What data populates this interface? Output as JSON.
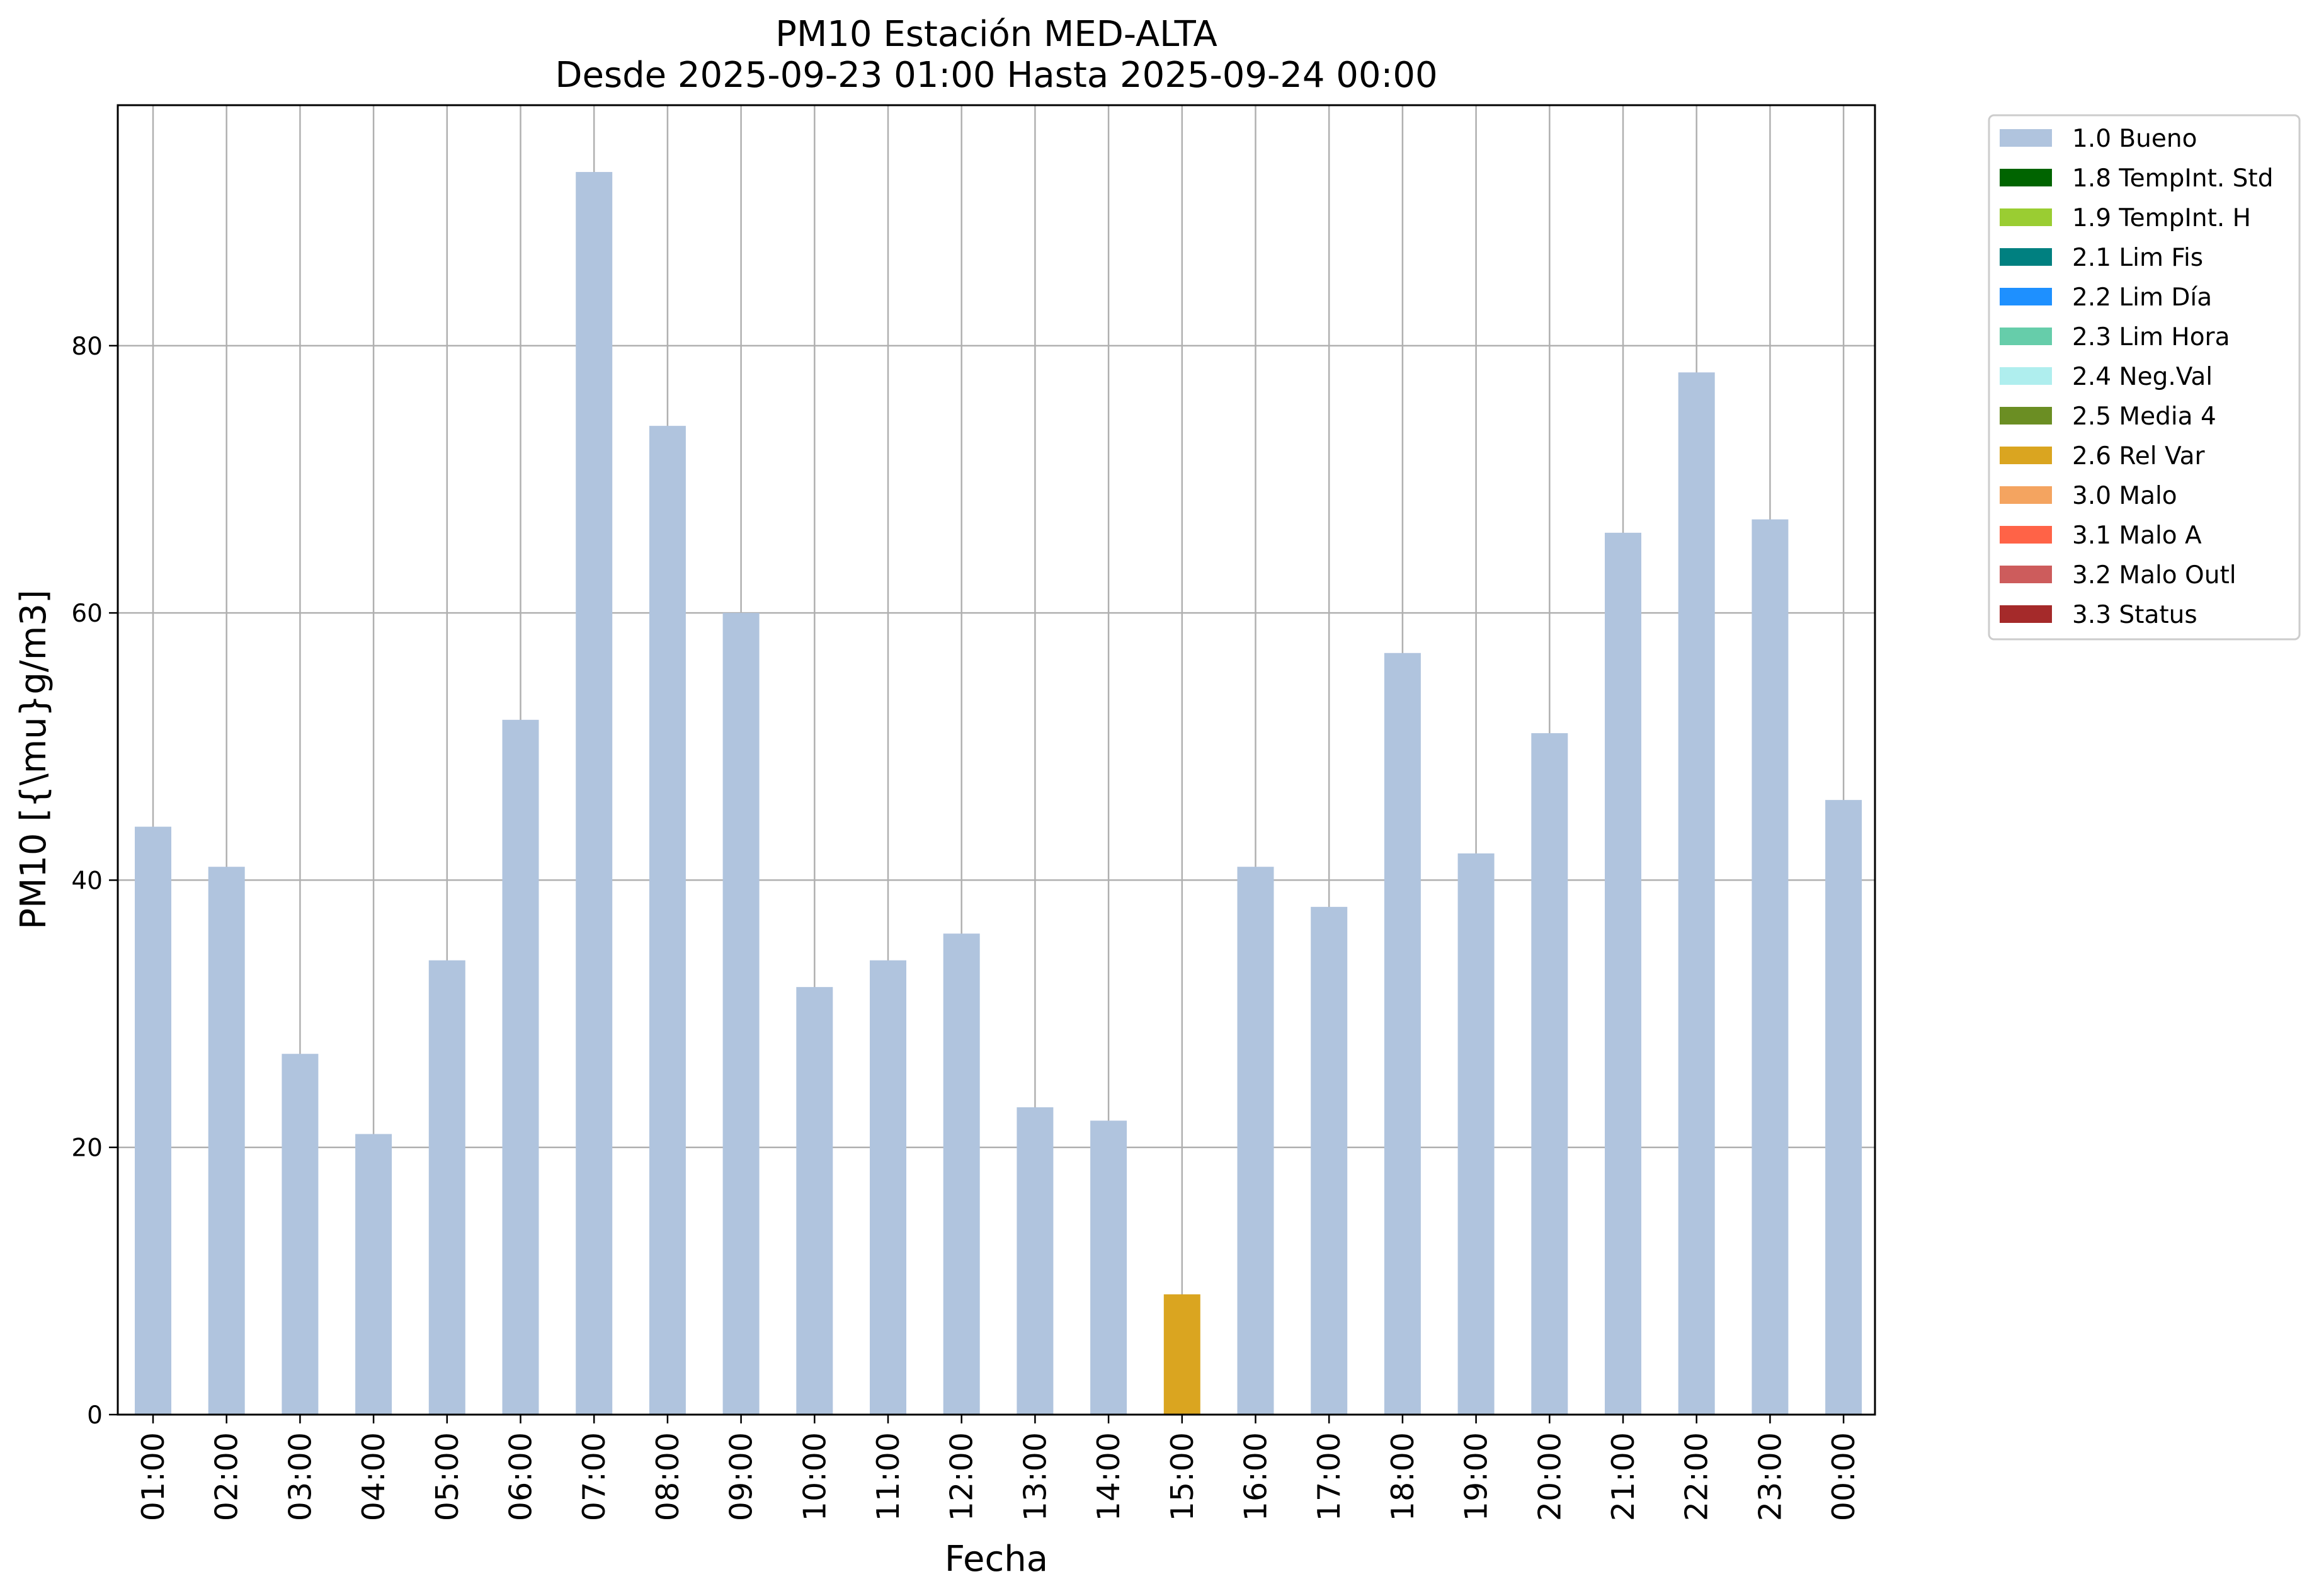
{
  "chart_data": {
    "type": "bar",
    "title": "PM10 Estación MED-ALTA",
    "subtitle": "Desde 2025-09-23 01:00 Hasta 2025-09-24 00:00",
    "xlabel": "Fecha",
    "ylabel": "PM10 [{\\mu}g/m3]",
    "ylim": [
      0,
      98
    ],
    "yticks": [
      0,
      20,
      40,
      60,
      80
    ],
    "grid": true,
    "legend_position": "outside-top-right",
    "categories": [
      "01:00",
      "02:00",
      "03:00",
      "04:00",
      "05:00",
      "06:00",
      "07:00",
      "08:00",
      "09:00",
      "10:00",
      "11:00",
      "12:00",
      "13:00",
      "14:00",
      "15:00",
      "16:00",
      "17:00",
      "18:00",
      "19:00",
      "20:00",
      "21:00",
      "22:00",
      "23:00",
      "00:00"
    ],
    "values": [
      44,
      41,
      27,
      21,
      34,
      52,
      93,
      74,
      60,
      32,
      34,
      36,
      23,
      22,
      9,
      41,
      38,
      57,
      42,
      51,
      66,
      78,
      67,
      46
    ],
    "flags": [
      "1.0 Bueno",
      "1.0 Bueno",
      "1.0 Bueno",
      "1.0 Bueno",
      "1.0 Bueno",
      "1.0 Bueno",
      "1.0 Bueno",
      "1.0 Bueno",
      "1.0 Bueno",
      "1.0 Bueno",
      "1.0 Bueno",
      "1.0 Bueno",
      "1.0 Bueno",
      "1.0 Bueno",
      "2.6 Rel Var",
      "1.0 Bueno",
      "1.0 Bueno",
      "1.0 Bueno",
      "1.0 Bueno",
      "1.0 Bueno",
      "1.0 Bueno",
      "1.0 Bueno",
      "1.0 Bueno",
      "1.0 Bueno"
    ],
    "legend": [
      {
        "label": "1.0 Bueno",
        "color": "#b0c4de"
      },
      {
        "label": "1.8 TempInt. Std",
        "color": "#006400"
      },
      {
        "label": "1.9 TempInt. H",
        "color": "#9acd32"
      },
      {
        "label": "2.1 Lim Fis",
        "color": "#008080"
      },
      {
        "label": "2.2 Lim Día",
        "color": "#1e90ff"
      },
      {
        "label": "2.3 Lim Hora",
        "color": "#66cdaa"
      },
      {
        "label": "2.4 Neg.Val",
        "color": "#afeeee"
      },
      {
        "label": "2.5 Media 4",
        "color": "#6b8e23"
      },
      {
        "label": "2.6 Rel Var",
        "color": "#daa520"
      },
      {
        "label": "3.0 Malo",
        "color": "#f4a460"
      },
      {
        "label": "3.1 Malo A",
        "color": "#ff6347"
      },
      {
        "label": "3.2 Malo Outl",
        "color": "#cd5c5c"
      },
      {
        "label": "3.3 Status",
        "color": "#a52a2a"
      }
    ]
  }
}
